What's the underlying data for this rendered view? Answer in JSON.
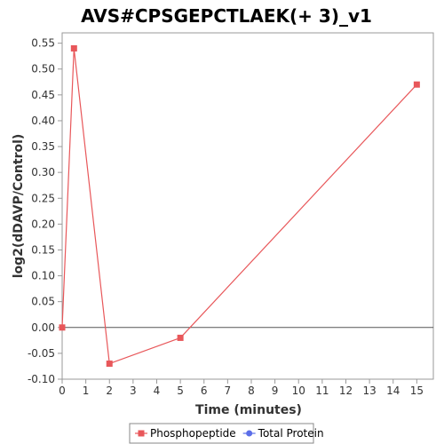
{
  "chart_data": {
    "type": "line",
    "title": "AVS#CPSGEPCTLAEK(+ 3)_v1",
    "xlabel": "Time (minutes)",
    "ylabel": "log2(dDAVP/Control)",
    "xlim": [
      0,
      15.7
    ],
    "ylim": [
      -0.1,
      0.57
    ],
    "x_ticks": [
      0,
      1,
      2,
      3,
      4,
      5,
      6,
      7,
      8,
      9,
      10,
      11,
      12,
      13,
      14,
      15
    ],
    "y_ticks": [
      -0.1,
      -0.05,
      0.0,
      0.05,
      0.1,
      0.15,
      0.2,
      0.25,
      0.3,
      0.35,
      0.4,
      0.45,
      0.5,
      0.55
    ],
    "y_tick_labels": [
      "-0.10",
      "-0.05",
      "0.00",
      "0.05",
      "0.10",
      "0.15",
      "0.20",
      "0.25",
      "0.30",
      "0.35",
      "0.40",
      "0.45",
      "0.50",
      "0.55"
    ],
    "reference_line_y": 0,
    "grid": false,
    "legend_position": "bottom-center",
    "series": [
      {
        "name": "Phosphopeptide",
        "color": "#e8575a",
        "marker": "square",
        "x": [
          0,
          0.5,
          2,
          5,
          15
        ],
        "y": [
          0.0,
          0.54,
          -0.07,
          -0.02,
          0.47
        ]
      },
      {
        "name": "Total Protein",
        "color": "#5b6ee8",
        "marker": "circle",
        "x": [],
        "y": []
      }
    ]
  }
}
